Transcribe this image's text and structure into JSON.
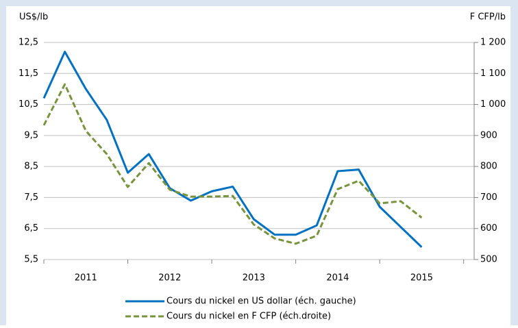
{
  "chart_data": {
    "type": "line",
    "y_label": "US$/lb",
    "y2_label": "F CFP/lb",
    "x": [
      2011,
      2011.25,
      2011.5,
      2011.75,
      2012,
      2012.25,
      2012.5,
      2012.75,
      2013,
      2013.25,
      2013.5,
      2013.75,
      2014,
      2014.25,
      2014.5,
      2014.75,
      2015,
      2015.25,
      2015.5
    ],
    "xlim": [
      2011,
      2016.125
    ],
    "xticks": [
      2011,
      2012,
      2013,
      2014,
      2015,
      2016
    ],
    "xlabels": [
      {
        "value": 2011.5,
        "label": "2011"
      },
      {
        "value": 2012.5,
        "label": "2012"
      },
      {
        "value": 2013.5,
        "label": "2013"
      },
      {
        "value": 2014.5,
        "label": "2014"
      },
      {
        "value": 2015.5,
        "label": "2015"
      }
    ],
    "ylim": [
      5.5,
      12.5
    ],
    "yticks": [
      {
        "value": 5.5,
        "label": "5,5"
      },
      {
        "value": 6.5,
        "label": "6,5"
      },
      {
        "value": 7.5,
        "label": "7,5"
      },
      {
        "value": 8.5,
        "label": "8,5"
      },
      {
        "value": 9.5,
        "label": "9,5"
      },
      {
        "value": 10.5,
        "label": "10,5"
      },
      {
        "value": 11.5,
        "label": "11,5"
      },
      {
        "value": 12.5,
        "label": "12,5"
      }
    ],
    "y2lim": [
      500,
      1200
    ],
    "y2ticks": [
      500,
      600,
      700,
      800,
      900,
      {
        "value": 1000,
        "label": "1 000"
      },
      {
        "value": 1100,
        "label": "1 100"
      },
      {
        "value": 1200,
        "label": "1 200"
      }
    ],
    "grid": true,
    "series": [
      {
        "name": "Cours du nickel en US dollar (éch. gauche)",
        "color": "#0070c0",
        "axis": "y",
        "dash": false,
        "values": [
          10.7,
          12.2,
          11.0,
          10.0,
          8.3,
          8.9,
          7.8,
          7.4,
          7.7,
          7.85,
          6.8,
          6.3,
          6.3,
          6.6,
          8.35,
          8.4,
          7.2,
          6.55,
          5.9
        ]
      },
      {
        "name": "Cours du nickel en F CFP (éch.droite)",
        "color": "#77933c",
        "axis": "y2",
        "dash": true,
        "values": [
          933,
          1065,
          915,
          840,
          734,
          811,
          725,
          703,
          703,
          705,
          613,
          568,
          551,
          577,
          727,
          754,
          681,
          688,
          635
        ]
      }
    ]
  }
}
